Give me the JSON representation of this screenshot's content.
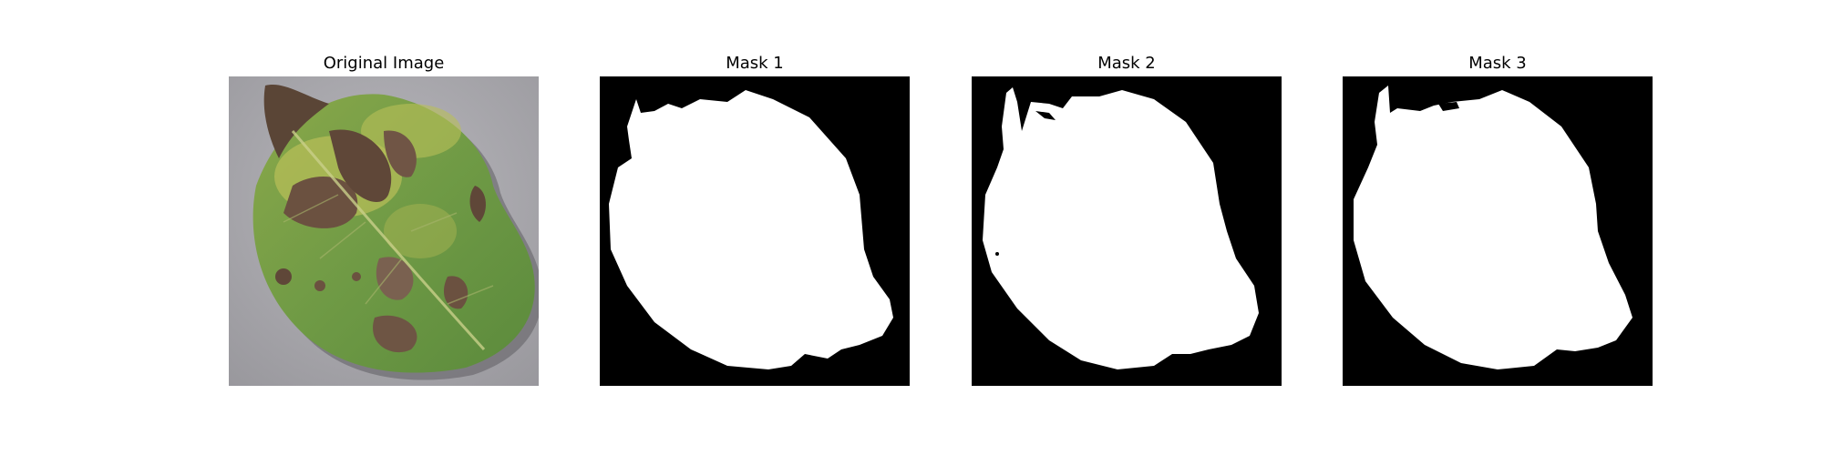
{
  "figure": {
    "panels": [
      {
        "title": "Original Image",
        "kind": "photo"
      },
      {
        "title": "Mask 1",
        "kind": "mask"
      },
      {
        "title": "Mask 2",
        "kind": "mask"
      },
      {
        "title": "Mask 3",
        "kind": "mask"
      }
    ]
  },
  "colors": {
    "mask_background": "#000000",
    "mask_foreground": "#ffffff",
    "photo_background": "#a9a8ad",
    "leaf_green": "#6f9a45",
    "leaf_yellow": "#b9bf58",
    "lesion_brown": "#6b5140"
  }
}
